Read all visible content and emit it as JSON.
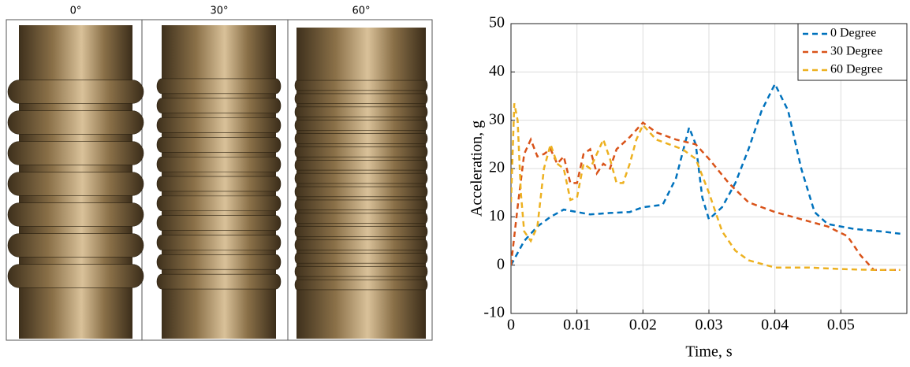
{
  "panels": {
    "labels": [
      "0°",
      "30°",
      "60°"
    ]
  },
  "chart_data": {
    "type": "line",
    "xlabel": "Time, s",
    "ylabel": "Acceleration, g",
    "xlim": [
      0,
      0.06
    ],
    "ylim": [
      -10,
      50
    ],
    "xticks": [
      0,
      0.01,
      0.02,
      0.03,
      0.04,
      0.05
    ],
    "yticks": [
      -10,
      0,
      10,
      20,
      30,
      40,
      50
    ],
    "grid": true,
    "legend": "top-right",
    "series": [
      {
        "name": "0 Degree",
        "color": "#0072bd",
        "x": [
          0,
          0.002,
          0.004,
          0.006,
          0.008,
          0.01,
          0.012,
          0.015,
          0.018,
          0.02,
          0.023,
          0.025,
          0.027,
          0.028,
          0.029,
          0.03,
          0.032,
          0.034,
          0.036,
          0.038,
          0.04,
          0.042,
          0.044,
          0.046,
          0.048,
          0.052,
          0.056,
          0.059
        ],
        "values": [
          0,
          5,
          8,
          10,
          11.5,
          11,
          10.5,
          10.8,
          11,
          12,
          12.5,
          18,
          28.5,
          25,
          14,
          9.5,
          12,
          17,
          24,
          32,
          37.5,
          32,
          20,
          11,
          8.5,
          7.5,
          7,
          6.5
        ]
      },
      {
        "name": "30 Degree",
        "color": "#d95319",
        "x": [
          0,
          0.001,
          0.002,
          0.003,
          0.004,
          0.005,
          0.006,
          0.007,
          0.008,
          0.009,
          0.01,
          0.011,
          0.012,
          0.013,
          0.014,
          0.015,
          0.016,
          0.018,
          0.02,
          0.022,
          0.025,
          0.028,
          0.03,
          0.033,
          0.036,
          0.04,
          0.044,
          0.048,
          0.051,
          0.053,
          0.055,
          0.059
        ],
        "values": [
          0,
          12,
          23,
          26,
          22.5,
          23,
          24,
          21,
          22.5,
          17,
          17,
          23,
          24,
          19,
          21,
          20,
          24,
          26.5,
          29.5,
          27.5,
          26,
          25,
          22,
          17,
          13,
          11,
          9.5,
          8,
          6,
          2,
          -1,
          -1
        ]
      },
      {
        "name": "60 Degree",
        "color": "#edb120",
        "x": [
          0,
          0.0005,
          0.001,
          0.0015,
          0.002,
          0.003,
          0.004,
          0.005,
          0.006,
          0.007,
          0.008,
          0.009,
          0.01,
          0.011,
          0.012,
          0.013,
          0.014,
          0.015,
          0.016,
          0.017,
          0.018,
          0.019,
          0.02,
          0.022,
          0.024,
          0.026,
          0.028,
          0.03,
          0.032,
          0.034,
          0.036,
          0.04,
          0.045,
          0.05,
          0.055,
          0.059
        ],
        "values": [
          13,
          33.5,
          30,
          15,
          7,
          5,
          8,
          20,
          25,
          21,
          20,
          13.5,
          14,
          21,
          20,
          23,
          26,
          22,
          17,
          17,
          21,
          26,
          29,
          26,
          25,
          24,
          22,
          15,
          7,
          3,
          1,
          -0.5,
          -0.5,
          -0.8,
          -1,
          -1
        ]
      }
    ]
  }
}
